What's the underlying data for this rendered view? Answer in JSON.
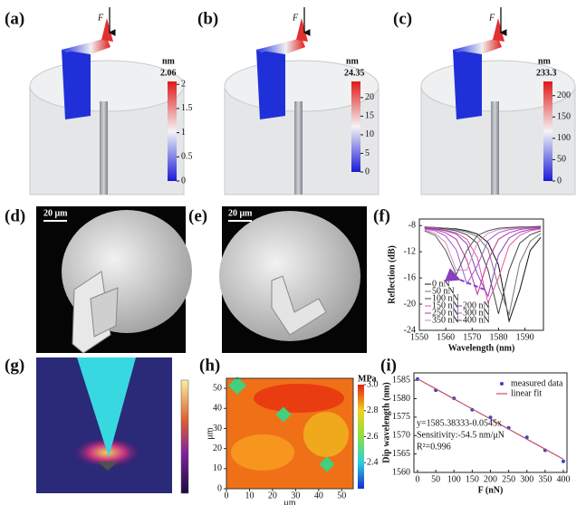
{
  "figure": {
    "panel_labels": [
      "(a)",
      "(b)",
      "(c)",
      "(d)",
      "(e)",
      "(f)",
      "(g)",
      "(h)",
      "(i)"
    ],
    "force_symbol": "F",
    "colorbars": [
      {
        "unit": "nm",
        "max": 2.06,
        "ticks": [
          0,
          0.5,
          1,
          1.5,
          2
        ]
      },
      {
        "unit": "nm",
        "max": 24.35,
        "ticks": [
          0,
          5,
          10,
          15,
          20
        ]
      },
      {
        "unit": "nm",
        "max": 233.3,
        "ticks": [
          0,
          50,
          100,
          150,
          200
        ]
      }
    ],
    "scale_bars": [
      "20 μm",
      "20 μm"
    ],
    "map": {
      "xlabel": "μm",
      "ylabel": "μm",
      "lim": [
        0,
        55
      ],
      "xticks": [
        0,
        10,
        20,
        30,
        40,
        50
      ],
      "yticks": [
        0,
        10,
        20,
        30,
        40,
        50
      ],
      "colorbar": {
        "unit": "MPa",
        "lim": [
          2.2,
          3.0
        ],
        "ticks": [
          {
            "value": 2.4,
            "label": "2.4"
          },
          {
            "value": 2.6,
            "label": "2.6"
          },
          {
            "value": 2.8,
            "label": "2.8"
          },
          {
            "value": 3.0,
            "label": "3.0"
          }
        ]
      }
    }
  },
  "chart_data": [
    {
      "type": "line",
      "xlabel": "Wavelength (nm)",
      "ylabel": "Reflection (dB)",
      "x": [
        1552,
        1556,
        1560,
        1564,
        1568,
        1572,
        1576,
        1580,
        1584,
        1588,
        1592,
        1596
      ],
      "xlim": [
        1550,
        1597
      ],
      "xticks": [
        1550,
        1560,
        1570,
        1580,
        1590
      ],
      "ylim": [
        -24,
        -7
      ],
      "yticks": [
        -24,
        -20,
        -16,
        -12,
        -8
      ],
      "series": [
        {
          "name": "0 nN",
          "color": "#111111",
          "values": [
            -8.2,
            -8.3,
            -8.4,
            -8.5,
            -8.8,
            -9.3,
            -10.6,
            -14.0,
            -22.6,
            -17.9,
            -11.8,
            -9.8
          ]
        },
        {
          "name": "50 nN",
          "color": "#777777",
          "values": [
            -8.2,
            -8.3,
            -8.4,
            -8.6,
            -9.0,
            -9.7,
            -11.6,
            -17.3,
            -21.6,
            -13.7,
            -10.4,
            -9.2
          ]
        },
        {
          "name": "100 nN",
          "color": "#444444",
          "values": [
            -8.3,
            -8.4,
            -8.5,
            -8.8,
            -9.4,
            -10.7,
            -14.8,
            -21.5,
            -14.8,
            -10.7,
            -9.4,
            -8.8
          ]
        },
        {
          "name": "150 nN",
          "color": "#e05aa0",
          "values": [
            -8.3,
            -8.4,
            -8.7,
            -9.1,
            -10.1,
            -12.9,
            -19.8,
            -16.0,
            -11.1,
            -9.5,
            -8.8,
            -8.5
          ]
        },
        {
          "name": "200 nN",
          "color": "#8a3fc0",
          "values": [
            -8.3,
            -8.5,
            -8.8,
            -9.3,
            -10.8,
            -15.4,
            -18.8,
            -12.5,
            -9.9,
            -9.0,
            -8.6,
            -8.4
          ]
        },
        {
          "name": "250 nN",
          "color": "#c0309a",
          "values": [
            -8.4,
            -8.6,
            -9.1,
            -10.1,
            -13.3,
            -18.5,
            -13.3,
            -10.1,
            -9.1,
            -8.6,
            -8.4,
            -8.3
          ]
        },
        {
          "name": "300 nN",
          "color": "#9b59d0",
          "values": [
            -8.5,
            -8.8,
            -9.6,
            -11.7,
            -16.9,
            -14.1,
            -10.3,
            -9.1,
            -8.6,
            -8.4,
            -8.3,
            -8.2
          ]
        },
        {
          "name": "350 nN",
          "color": "#d78ac0",
          "values": [
            -8.6,
            -9.2,
            -10.6,
            -14.8,
            -14.8,
            -10.6,
            -9.2,
            -8.6,
            -8.4,
            -8.3,
            -8.2,
            -8.1
          ]
        },
        {
          "name": "400 nN",
          "color": "#555555",
          "values": [
            -8.8,
            -9.5,
            -11.8,
            -15.5,
            -11.8,
            -9.5,
            -8.8,
            -8.4,
            -8.3,
            -8.2,
            -8.2,
            -8.1
          ]
        }
      ]
    },
    {
      "type": "scatter",
      "xlabel": "F (nN)",
      "ylabel": "Dip wavelength (nm)",
      "x": [
        0,
        50,
        100,
        150,
        200,
        250,
        300,
        350,
        400
      ],
      "xlim": [
        -10,
        410
      ],
      "xticks": [
        0,
        50,
        100,
        150,
        200,
        250,
        300,
        350,
        400
      ],
      "ylim": [
        1560,
        1587
      ],
      "yticks": [
        1560,
        1565,
        1570,
        1575,
        1580,
        1585
      ],
      "annotations": [
        "y=1585.38333-0.0545x",
        "Sensitivity:-54.5 nm/μN",
        "R²=0.996"
      ],
      "series": [
        {
          "name": "measured data",
          "mode": "markers",
          "color": "#3344cc",
          "values": [
            1585.3,
            1582.3,
            1580.1,
            1577.0,
            1574.9,
            1572.1,
            1569.5,
            1566.0,
            1563.0
          ]
        },
        {
          "name": "linear fit",
          "mode": "line",
          "color": "#c0506a",
          "values": [
            1585.38,
            1582.66,
            1579.93,
            1577.21,
            1574.48,
            1571.76,
            1569.03,
            1566.31,
            1563.58
          ]
        }
      ]
    }
  ]
}
